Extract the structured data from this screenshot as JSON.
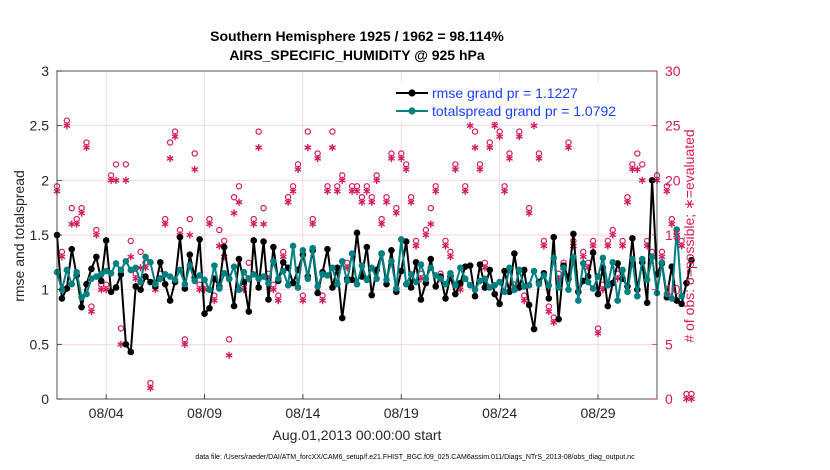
{
  "chart_data": {
    "type": "line",
    "title_line1": "Southern Hemisphere 1925 / 1962 = 98.114%",
    "title_line2": "AIRS_SPECIFIC_HUMIDITY @ 925 hPa",
    "ylabel_left": "rmse and totalspread",
    "ylabel_right": "# of obs: o=possible; ∗=evaluated",
    "xlabel": "Aug.01,2013 00:00:00 start",
    "footer": "data file: /Users/raeder/DAI/ATM_forcXX/CAM6_setup/f.e21.FHIST_BGC.f09_025.CAM6assim.011/Diags_NTrS_2013-08/obs_diag_output.nc",
    "ylim_left": [
      0,
      3
    ],
    "ylim_right": [
      0,
      30
    ],
    "xlim_days": [
      1.5,
      32.0
    ],
    "x_tick_days": [
      4,
      9,
      14,
      19,
      24,
      29
    ],
    "x_tick_labels": [
      "08/04",
      "08/09",
      "08/14",
      "08/19",
      "08/24",
      "08/29"
    ],
    "y_ticks_left": [
      "0",
      "0.5",
      "1",
      "1.5",
      "2",
      "2.5",
      "3"
    ],
    "y_ticks_right": [
      "0",
      "5",
      "10",
      "15",
      "20",
      "25",
      "30"
    ],
    "colors": {
      "rmse": "#000000",
      "spread": "#008080",
      "obs": "#d6195c",
      "legend_text": "#1a40ff"
    },
    "legend": [
      "rmse grand pr = 1.1227",
      "totalspread grand pr = 1.0792"
    ],
    "step_days": 0.25,
    "series": [
      {
        "name": "rmse",
        "values": [
          1.5,
          0.92,
          1.01,
          1.37,
          1.13,
          0.84,
          1.05,
          1.19,
          1.3,
          1.08,
          1.45,
          0.98,
          1.02,
          1.14,
          0.5,
          0.43,
          1.03,
          1.0,
          1.12,
          1.07,
          1.03,
          1.25,
          1.05,
          0.9,
          1.07,
          1.48,
          1.01,
          1.32,
          1.11,
          1.46,
          0.78,
          0.83,
          1.1,
          1.03,
          1.39,
          1.1,
          0.85,
          1.28,
          1.07,
          0.8,
          1.45,
          1.02,
          1.44,
          0.91,
          1.39,
          1.08,
          1.25,
          1.2,
          1.06,
          1.18,
          1.32,
          1.12,
          1.36,
          0.97,
          1.16,
          1.37,
          1.02,
          1.2,
          0.74,
          1.1,
          1.09,
          1.52,
          1.12,
          1.39,
          0.95,
          1.18,
          1.33,
          1.05,
          1.36,
          0.98,
          1.17,
          1.44,
          1.02,
          1.25,
          0.91,
          1.06,
          1.28,
          1.03,
          1.12,
          0.92,
          1.12,
          0.96,
          1.06,
          1.21,
          1.22,
          0.94,
          1.23,
          1.02,
          1.18,
          0.96,
          0.87,
          1.17,
          0.98,
          1.33,
          1.02,
          1.18,
          0.86,
          0.64,
          1.07,
          1.15,
          0.92,
          1.48,
          0.73,
          1.22,
          1.1,
          1.51,
          0.98,
          1.08,
          1.12,
          1.34,
          0.96,
          1.2,
          0.85,
          1.06,
          1.24,
          1.1,
          1.03,
          1.47,
          1.0,
          1.25,
          0.88,
          2.0,
          1.14,
          1.24,
          0.93,
          1.21,
          0.9,
          0.87,
          1.06,
          1.27
        ]
      },
      {
        "name": "totalspread",
        "values": [
          1.16,
          1.0,
          1.18,
          1.05,
          1.16,
          0.93,
          0.96,
          1.1,
          1.12,
          1.14,
          1.17,
          1.15,
          1.24,
          1.18,
          1.26,
          1.18,
          1.2,
          1.07,
          1.3,
          1.25,
          1.05,
          1.1,
          1.14,
          1.12,
          1.09,
          1.18,
          1.05,
          1.22,
          1.08,
          1.13,
          1.09,
          1.0,
          1.22,
          1.01,
          1.15,
          1.1,
          1.21,
          1.0,
          1.16,
          1.1,
          1.14,
          1.1,
          1.12,
          1.06,
          1.26,
          1.1,
          1.17,
          1.04,
          1.4,
          1.02,
          1.36,
          1.1,
          1.38,
          1.03,
          1.14,
          1.13,
          1.2,
          1.05,
          1.26,
          1.08,
          1.33,
          1.05,
          1.22,
          1.09,
          1.2,
          1.1,
          1.33,
          1.09,
          1.26,
          1.01,
          1.46,
          1.05,
          1.14,
          1.07,
          1.23,
          1.1,
          1.2,
          1.13,
          1.1,
          1.05,
          1.15,
          1.04,
          1.2,
          1.1,
          1.04,
          1.0,
          1.08,
          1.1,
          1.02,
          1.04,
          1.07,
          0.98,
          1.2,
          1.0,
          1.18,
          1.03,
          1.04,
          1.17,
          1.05,
          1.13,
          1.04,
          1.29,
          1.02,
          1.2,
          1.0,
          1.3,
          0.9,
          1.24,
          1.07,
          1.01,
          1.12,
          1.29,
          1.04,
          1.25,
          0.9,
          1.18,
          0.98,
          1.28,
          0.94,
          1.28,
          1.09,
          1.3,
          0.97,
          1.25,
          0.96,
          0.92,
          1.55,
          0.94
        ]
      },
      {
        "name": "obs_possible",
        "values": [
          19,
          13,
          25,
          17,
          16,
          17,
          23,
          8,
          15,
          10,
          10,
          20,
          21,
          6,
          21,
          14,
          11,
          13,
          12,
          1,
          10,
          11,
          16,
          23,
          24,
          15,
          5,
          16,
          22,
          10,
          10,
          16,
          9,
          15,
          14,
          5,
          18,
          19,
          10,
          12,
          16,
          24,
          17,
          11,
          10,
          9,
          13,
          18,
          19,
          21,
          9,
          24,
          16,
          22,
          9,
          19,
          24,
          19,
          20,
          12,
          19,
          19,
          18,
          19,
          18,
          20,
          16,
          18,
          22,
          17,
          22,
          21,
          18,
          14,
          11,
          15,
          17,
          19,
          11,
          14,
          13,
          21,
          10,
          19,
          26,
          24,
          21,
          12,
          23,
          25,
          24,
          19,
          22,
          10,
          24,
          9,
          17,
          26,
          22,
          14,
          8,
          7,
          11,
          12,
          23,
          14,
          27,
          13,
          12,
          14,
          6,
          10,
          14,
          15,
          11,
          14,
          18,
          21,
          22,
          21,
          14,
          13,
          20,
          13,
          19,
          16,
          15,
          14,
          0,
          0
        ]
      },
      {
        "name": "obs_evaluated",
        "values": [
          19,
          13,
          25,
          16,
          16,
          17,
          23,
          8,
          15,
          10,
          10,
          20,
          20,
          5,
          20,
          13,
          11,
          12,
          12,
          1,
          10,
          11,
          16,
          22,
          24,
          15,
          5,
          15,
          21,
          10,
          10,
          16,
          9,
          14,
          13,
          4,
          17,
          18,
          10,
          11,
          16,
          23,
          16,
          11,
          10,
          9,
          13,
          18,
          19,
          21,
          9,
          23,
          16,
          22,
          9,
          19,
          23,
          19,
          20,
          12,
          19,
          19,
          18,
          19,
          18,
          20,
          16,
          18,
          22,
          17,
          22,
          21,
          18,
          14,
          11,
          15,
          16,
          19,
          11,
          14,
          13,
          21,
          10,
          19,
          25,
          23,
          21,
          12,
          23,
          25,
          24,
          19,
          22,
          10,
          24,
          9,
          17,
          25,
          22,
          14,
          8,
          7,
          11,
          12,
          23,
          14,
          26,
          13,
          12,
          14,
          6,
          10,
          14,
          15,
          11,
          14,
          18,
          21,
          21,
          20,
          14,
          13,
          20,
          13,
          19,
          16,
          15,
          14,
          0,
          0
        ]
      }
    ]
  }
}
